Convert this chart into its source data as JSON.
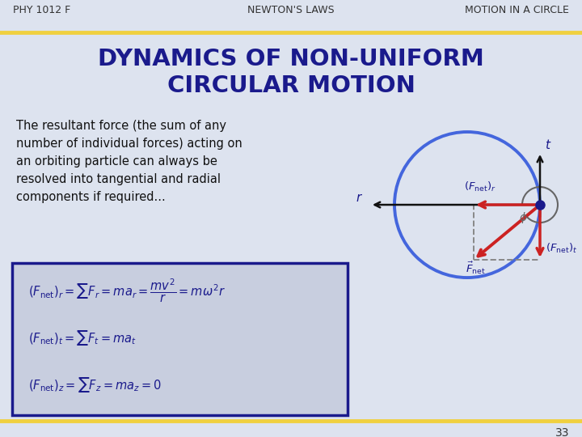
{
  "bg_color": "#dde3ef",
  "header_line_color": "#f0d040",
  "title_color": "#1a1a8c",
  "header_left": "PHY 1012 F",
  "header_center": "NEWTON'S LAWS",
  "header_right": "MOTION IN A CIRCLE",
  "header_color": "#333333",
  "body_line1": "The resultant force (the sum of any",
  "body_line2": "number of individual forces) acting on",
  "body_line3": "an orbiting particle can always be",
  "body_line4": "resolved into tangential and radial",
  "body_line5": "components if required...",
  "body_color": "#111111",
  "box_border": "#1a1a8c",
  "box_bg": "#c8cedf",
  "footer_number": "33",
  "circle_color": "#4466dd",
  "arrow_color": "#cc2222",
  "axis_color": "#111111",
  "dot_color": "#1a1a8c",
  "label_color": "#1a1a8c",
  "phi_color": "#666666",
  "dash_color": "#888888"
}
